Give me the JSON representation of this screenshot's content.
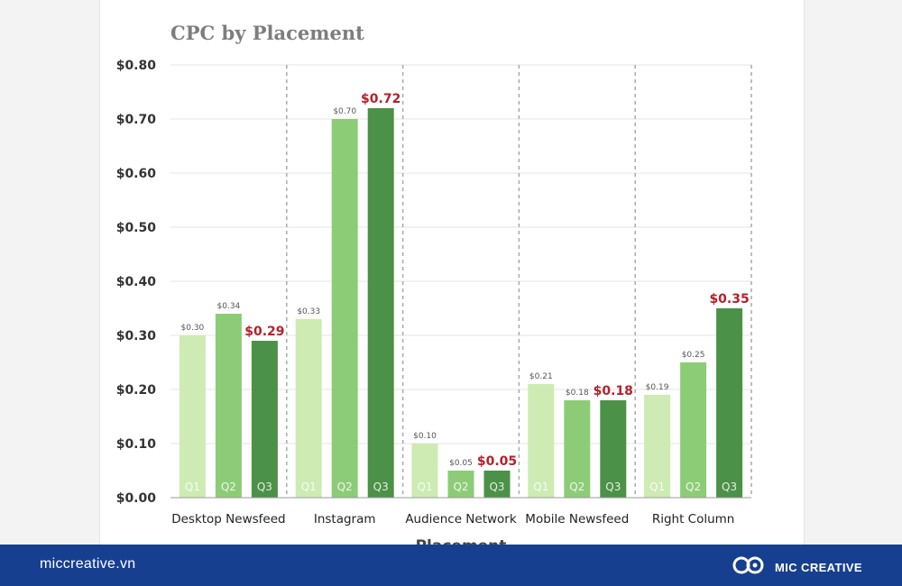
{
  "chart_data": {
    "type": "bar",
    "title": "CPC by Placement",
    "xlabel": "Placement",
    "ylabel": "",
    "ylim": [
      0,
      0.8
    ],
    "yticks": [
      "$0.00",
      "$0.10",
      "$0.20",
      "$0.30",
      "$0.40",
      "$0.50",
      "$0.60",
      "$0.70",
      "$0.80"
    ],
    "grid": true,
    "categories": [
      "Desktop Newsfeed",
      "Instagram",
      "Audience Network",
      "Mobile Newsfeed",
      "Right Column"
    ],
    "series": [
      {
        "name": "Q1",
        "color": "#cdebb2",
        "values": [
          0.3,
          0.33,
          0.1,
          0.21,
          0.19
        ],
        "labels": [
          "$0.30",
          "$0.33",
          "$0.10",
          "$0.21",
          "$0.19"
        ]
      },
      {
        "name": "Q2",
        "color": "#8dcc76",
        "values": [
          0.34,
          0.7,
          0.05,
          0.18,
          0.25
        ],
        "labels": [
          "$0.34",
          "$0.70",
          "$0.05",
          "$0.18",
          "$0.25"
        ]
      },
      {
        "name": "Q3",
        "color": "#4b9147",
        "values": [
          0.29,
          0.72,
          0.05,
          0.18,
          0.35
        ],
        "labels": [
          "$0.29",
          "$0.72",
          "$0.05",
          "$0.18",
          "$0.35"
        ],
        "label_color": "#b8202a"
      }
    ]
  },
  "footer": {
    "website": "miccreative.vn",
    "brand": "MIC CREATIVE",
    "background": "#173f8f"
  }
}
